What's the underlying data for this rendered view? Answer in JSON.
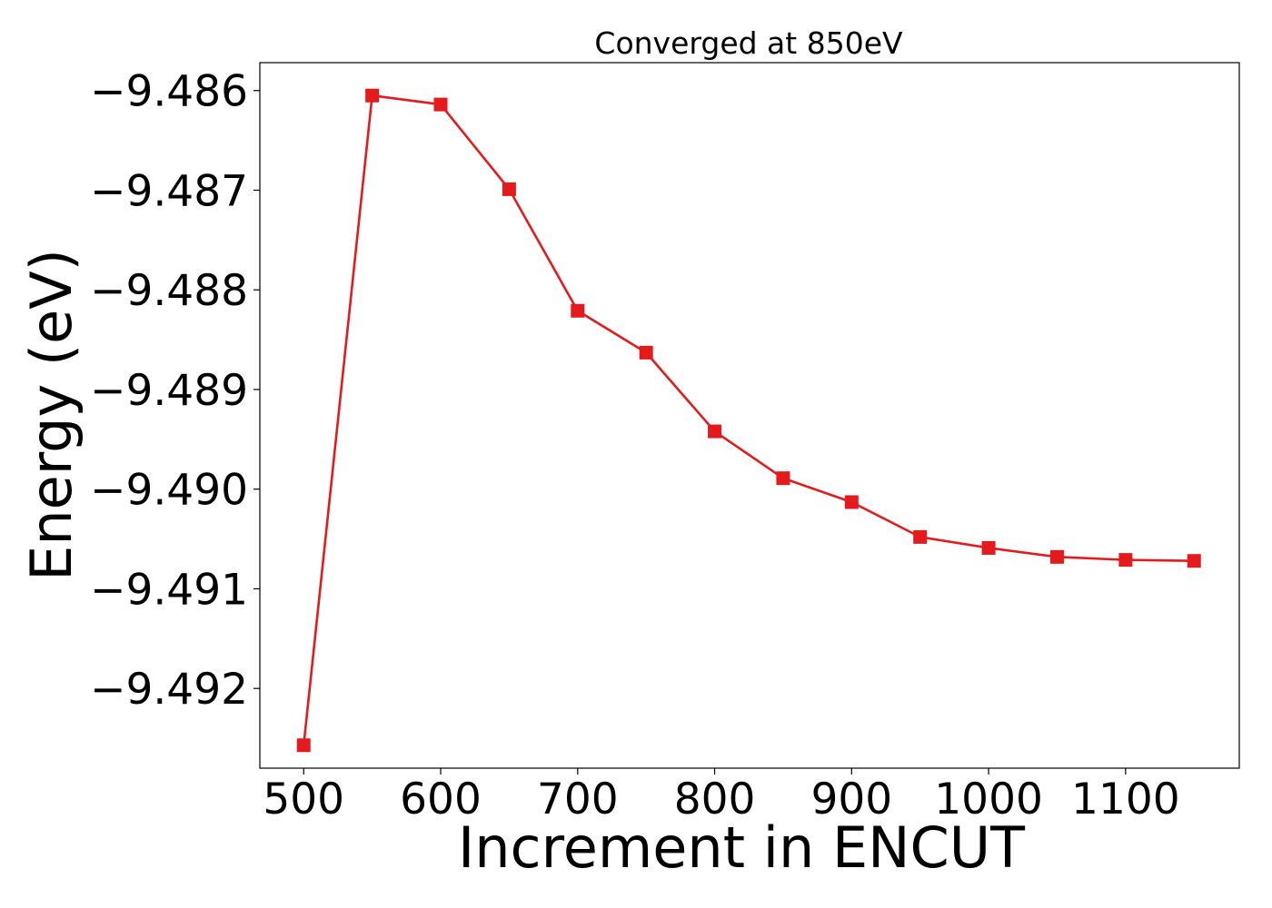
{
  "chart_data": {
    "type": "line",
    "title": "Converged at 850eV",
    "xlabel": "Increment in ENCUT",
    "ylabel": "Energy (eV)",
    "x": [
      500,
      550,
      600,
      650,
      700,
      750,
      800,
      850,
      900,
      950,
      1000,
      1050,
      1100,
      1150
    ],
    "series": [
      {
        "values": [
          -9.49257,
          -9.48605,
          -9.48614,
          -9.48699,
          -9.48821,
          -9.48863,
          -9.48942,
          -9.48989,
          -9.49013,
          -9.49048,
          -9.49059,
          -9.49068,
          -9.49071,
          -9.49072
        ],
        "color": "#e41a1c",
        "marker": "square"
      }
    ],
    "xlim": [
      468,
      1183
    ],
    "ylim": [
      -9.4928,
      -9.48572
    ],
    "x_ticks": [
      500,
      600,
      700,
      800,
      900,
      1000,
      1100
    ],
    "x_tick_labels": [
      "500",
      "600",
      "700",
      "800",
      "900",
      "1000",
      "1100"
    ],
    "y_ticks": [
      -9.486,
      -9.487,
      -9.488,
      -9.489,
      -9.49,
      -9.491,
      -9.492
    ],
    "y_tick_labels": [
      "−9.486",
      "−9.487",
      "−9.488",
      "−9.489",
      "−9.490",
      "−9.491",
      "−9.492"
    ],
    "grid": false,
    "legend": "none"
  }
}
